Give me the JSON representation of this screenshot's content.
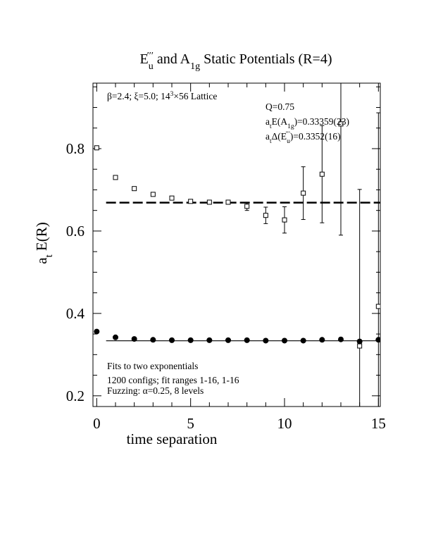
{
  "chart_data": {
    "type": "scatter",
    "title_parts": [
      {
        "text": "E"
      },
      {
        "text": "u",
        "script": "sub"
      },
      {
        "text": "′′′",
        "script": "sup"
      },
      {
        "text": "  and A"
      },
      {
        "text": "1g",
        "script": "sub"
      },
      {
        "text": " Static Potentials (R=4)"
      }
    ],
    "xlabel": "time separation",
    "ylabel_parts": [
      {
        "text": "a"
      },
      {
        "text": "t",
        "script": "sub"
      },
      {
        "text": " E(R)"
      }
    ],
    "xlim": [
      -0.2,
      15.1
    ],
    "ylim": [
      0.174,
      0.959
    ],
    "xticks": [
      0,
      5,
      10,
      15
    ],
    "yticks": [
      0.2,
      0.4,
      0.6,
      0.8
    ],
    "xminorticks": [
      1,
      2,
      3,
      4,
      6,
      7,
      8,
      9,
      11,
      12,
      13,
      14
    ],
    "yminorticks": [
      0.25,
      0.3,
      0.35,
      0.45,
      0.5,
      0.55,
      0.65,
      0.7,
      0.75,
      0.85,
      0.9,
      0.95
    ],
    "series": [
      {
        "marker": "open-square",
        "color": "#000000",
        "x": [
          0,
          1,
          2,
          3,
          4,
          5,
          6,
          7,
          8,
          9,
          10,
          11,
          12,
          13,
          14,
          15
        ],
        "values": [
          0.802,
          0.73,
          0.703,
          0.689,
          0.68,
          0.672,
          0.67,
          0.67,
          0.66,
          0.638,
          0.627,
          0.692,
          0.738,
          0.86,
          0.321,
          0.417
        ],
        "errors": [
          0.002,
          0.002,
          0.002,
          0.002,
          0.003,
          0.003,
          0.004,
          0.005,
          0.01,
          0.02,
          0.032,
          0.064,
          0.118,
          0.27,
          0.38,
          0.47
        ]
      },
      {
        "marker": "filled-circle",
        "color": "#000000",
        "x": [
          0,
          1,
          2,
          3,
          4,
          5,
          6,
          7,
          8,
          9,
          10,
          11,
          12,
          13,
          14,
          15
        ],
        "values": [
          0.356,
          0.342,
          0.338,
          0.336,
          0.335,
          0.335,
          0.335,
          0.335,
          0.335,
          0.334,
          0.334,
          0.334,
          0.336,
          0.337,
          0.332,
          0.336
        ]
      }
    ],
    "fits": [
      {
        "value": 0.669,
        "x_start": 0.5,
        "style": "dashed"
      },
      {
        "value": 0.3336,
        "x_start": 0.5,
        "style": "solid"
      }
    ],
    "annotations": [
      [
        {
          "text": "β=2.4; ξ=5.0; 14"
        },
        {
          "text": "3",
          "script": "sup"
        },
        {
          "text": "×56 Lattice"
        }
      ],
      [
        {
          "text": "Q=0.75"
        }
      ],
      [
        {
          "text": "a"
        },
        {
          "text": "t",
          "script": "sub"
        },
        {
          "text": "E(A"
        },
        {
          "text": "1g",
          "script": "sub"
        },
        {
          "text": ")=0.33359(23)"
        }
      ],
      [
        {
          "text": "a"
        },
        {
          "text": "t",
          "script": "sub"
        },
        {
          "text": "Δ(E"
        },
        {
          "text": "u",
          "script": "sub"
        },
        {
          "text": "′′′",
          "script": "sup"
        },
        {
          "text": ")=0.3352(16)"
        }
      ],
      [
        {
          "text": "Fits to two exponentials"
        }
      ],
      [
        {
          "text": "1200 configs; fit ranges 1-16, 1-16"
        }
      ],
      [
        {
          "text": "Fuzzing: α=0.25, 8 levels"
        }
      ]
    ]
  }
}
